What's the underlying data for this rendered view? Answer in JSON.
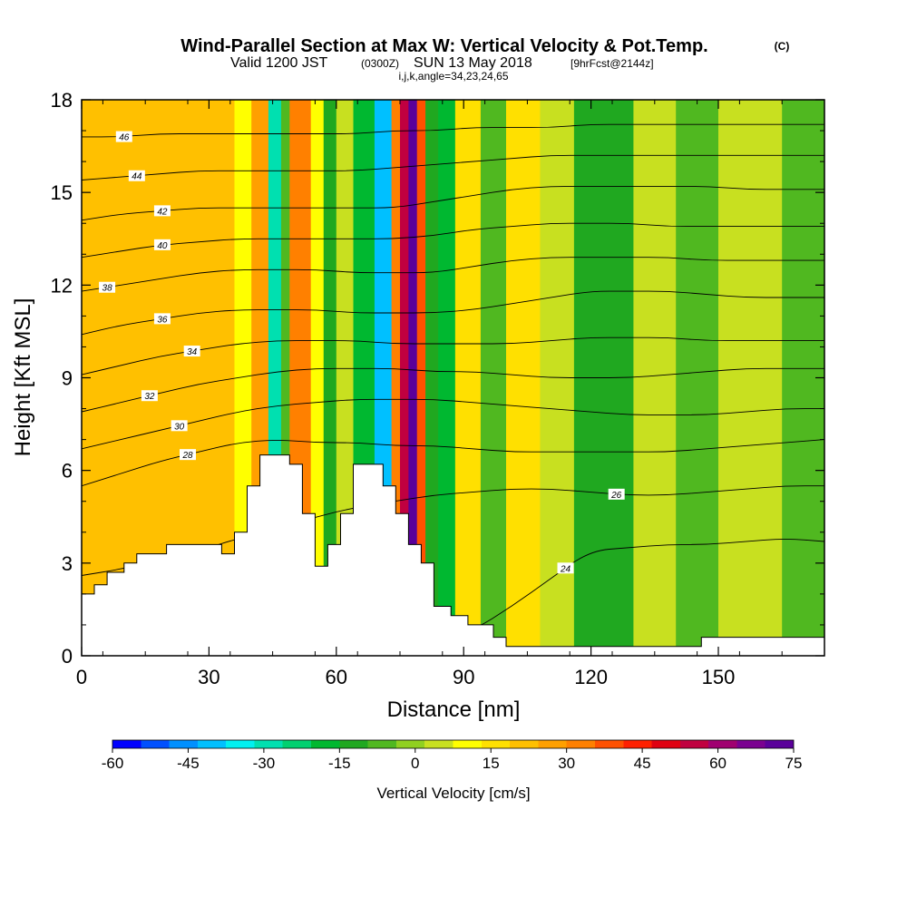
{
  "titles": {
    "main": "Wind-Parallel Section at Max W: Vertical Velocity & Pot.Temp.",
    "copyright": "(C)",
    "valid_prefix": "Valid 1200 JST",
    "valid_utc": "(0300Z)",
    "valid_date": "SUN 13 May 2018",
    "forecast": "[9hrFcst@2144z]",
    "indices": "i,j,k,angle=34,23,24,65"
  },
  "chart_data": {
    "type": "heatmap",
    "xlabel": "Distance [nm]",
    "ylabel": "Height [Kft MSL]",
    "xlim": [
      0,
      175
    ],
    "ylim": [
      0,
      18
    ],
    "xticks": [
      0,
      30,
      60,
      90,
      120,
      150
    ],
    "yticks": [
      0,
      3,
      6,
      9,
      12,
      15,
      18
    ],
    "colorbar": {
      "label": "Vertical Velocity [cm/s]",
      "ticks": [
        -60,
        -45,
        -30,
        -15,
        0,
        15,
        30,
        45,
        60,
        75
      ],
      "range": [
        -60,
        75
      ],
      "colors": [
        "#0000ff",
        "#0050ff",
        "#0090ff",
        "#00c0ff",
        "#00f0f0",
        "#00e0b0",
        "#00d070",
        "#00b830",
        "#20a820",
        "#50b820",
        "#90d020",
        "#c8e020",
        "#ffff00",
        "#ffe000",
        "#ffc000",
        "#ffa000",
        "#ff8000",
        "#ff5000",
        "#ff2000",
        "#e00010",
        "#c00040",
        "#a00070",
        "#7a0090",
        "#5a009a"
      ]
    },
    "terrain": [
      [
        0,
        2.0
      ],
      [
        3,
        2.0
      ],
      [
        3,
        2.3
      ],
      [
        6,
        2.3
      ],
      [
        6,
        2.7
      ],
      [
        10,
        2.7
      ],
      [
        10,
        3.0
      ],
      [
        13,
        3.0
      ],
      [
        13,
        3.3
      ],
      [
        20,
        3.3
      ],
      [
        20,
        3.6
      ],
      [
        33,
        3.6
      ],
      [
        33,
        3.3
      ],
      [
        36,
        3.3
      ],
      [
        36,
        4.0
      ],
      [
        39,
        4.0
      ],
      [
        39,
        5.5
      ],
      [
        42,
        5.5
      ],
      [
        42,
        6.5
      ],
      [
        49,
        6.5
      ],
      [
        49,
        6.2
      ],
      [
        52,
        6.2
      ],
      [
        52,
        4.6
      ],
      [
        55,
        4.6
      ],
      [
        55,
        2.9
      ],
      [
        58,
        2.9
      ],
      [
        58,
        3.6
      ],
      [
        61,
        3.6
      ],
      [
        61,
        4.6
      ],
      [
        64,
        4.6
      ],
      [
        64,
        6.2
      ],
      [
        71,
        6.2
      ],
      [
        71,
        5.5
      ],
      [
        74,
        5.5
      ],
      [
        74,
        4.6
      ],
      [
        77,
        4.6
      ],
      [
        77,
        3.6
      ],
      [
        80,
        3.6
      ],
      [
        80,
        3.0
      ],
      [
        83,
        3.0
      ],
      [
        83,
        1.6
      ],
      [
        87,
        1.6
      ],
      [
        87,
        1.3
      ],
      [
        91,
        1.3
      ],
      [
        91,
        1.0
      ],
      [
        97,
        1.0
      ],
      [
        97,
        0.6
      ],
      [
        100,
        0.6
      ],
      [
        100,
        0.3
      ],
      [
        146,
        0.3
      ],
      [
        146,
        0.6
      ],
      [
        175,
        0.6
      ]
    ],
    "contours": [
      {
        "level": 24,
        "label_x": 114,
        "heights": [
          0.6,
          0.6,
          0.6,
          0.6,
          0.6,
          0.6,
          0.6,
          0.6,
          0.6,
          0.6,
          0.8,
          1.6,
          2.5,
          3.4,
          3.5,
          3.6,
          3.6,
          3.7,
          3.8,
          3.7
        ]
      },
      {
        "level": 26,
        "label_x": 126,
        "heights": [
          2.6,
          2.8,
          3.1,
          3.4,
          3.8,
          4.1,
          4.5,
          4.8,
          5.0,
          5.2,
          5.3,
          5.4,
          5.4,
          5.3,
          5.2,
          5.2,
          5.3,
          5.4,
          5.5,
          5.5
        ]
      },
      {
        "level": 28,
        "label_x": 25,
        "heights": [
          5.5,
          5.9,
          6.3,
          6.6,
          6.9,
          7.0,
          6.9,
          6.9,
          6.8,
          6.8,
          6.7,
          6.6,
          6.6,
          6.6,
          6.6,
          6.6,
          6.7,
          6.8,
          6.9,
          7.0
        ]
      },
      {
        "level": 30,
        "label_x": 23,
        "heights": [
          6.7,
          7.0,
          7.3,
          7.6,
          7.9,
          8.1,
          8.2,
          8.3,
          8.3,
          8.3,
          8.2,
          8.1,
          8.0,
          7.9,
          7.8,
          7.8,
          7.8,
          7.9,
          8.0,
          8.0
        ]
      },
      {
        "level": 32,
        "label_x": 16,
        "heights": [
          7.9,
          8.2,
          8.5,
          8.8,
          9.0,
          9.2,
          9.3,
          9.3,
          9.3,
          9.2,
          9.2,
          9.1,
          9.0,
          9.0,
          9.0,
          9.1,
          9.2,
          9.3,
          9.3,
          9.3
        ]
      },
      {
        "level": 34,
        "label_x": 26,
        "heights": [
          9.1,
          9.4,
          9.7,
          9.9,
          10.1,
          10.2,
          10.2,
          10.2,
          10.1,
          10.1,
          10.1,
          10.1,
          10.2,
          10.3,
          10.3,
          10.3,
          10.2,
          10.2,
          10.2,
          10.2
        ]
      },
      {
        "level": 36,
        "label_x": 19,
        "heights": [
          10.4,
          10.7,
          10.9,
          11.1,
          11.2,
          11.2,
          11.2,
          11.1,
          11.1,
          11.1,
          11.2,
          11.4,
          11.6,
          11.8,
          11.8,
          11.8,
          11.7,
          11.6,
          11.6,
          11.6
        ]
      },
      {
        "level": 38,
        "label_x": 6,
        "heights": [
          11.8,
          12.0,
          12.2,
          12.4,
          12.5,
          12.5,
          12.5,
          12.4,
          12.4,
          12.4,
          12.6,
          12.8,
          12.9,
          12.9,
          12.9,
          12.9,
          12.8,
          12.8,
          12.8,
          12.8
        ]
      },
      {
        "level": 40,
        "label_x": 19,
        "heights": [
          12.9,
          13.1,
          13.3,
          13.4,
          13.5,
          13.5,
          13.5,
          13.5,
          13.5,
          13.6,
          13.8,
          13.9,
          14.0,
          14.0,
          14.0,
          13.9,
          13.9,
          13.9,
          13.9,
          13.9
        ]
      },
      {
        "level": 42,
        "label_x": 19,
        "heights": [
          14.1,
          14.3,
          14.4,
          14.5,
          14.5,
          14.5,
          14.5,
          14.5,
          14.5,
          14.7,
          14.9,
          15.1,
          15.2,
          15.2,
          15.2,
          15.2,
          15.2,
          15.1,
          15.1,
          15.1
        ]
      },
      {
        "level": 44,
        "label_x": 13,
        "heights": [
          15.4,
          15.5,
          15.6,
          15.7,
          15.7,
          15.7,
          15.7,
          15.7,
          15.8,
          15.9,
          16.0,
          16.1,
          16.2,
          16.2,
          16.2,
          16.2,
          16.2,
          16.2,
          16.2,
          16.2
        ]
      },
      {
        "level": 46,
        "label_x": 10,
        "heights": [
          16.8,
          16.8,
          16.9,
          16.9,
          16.9,
          16.9,
          16.9,
          16.9,
          17.0,
          17.0,
          17.1,
          17.1,
          17.1,
          17.2,
          17.2,
          17.2,
          17.2,
          17.2,
          17.2,
          17.2
        ]
      }
    ],
    "velocity_field": [
      {
        "x0": 0,
        "x1": 36,
        "value": 22
      },
      {
        "x0": 36,
        "x1": 40,
        "value": 12
      },
      {
        "x0": 40,
        "x1": 44,
        "value": 28
      },
      {
        "x0": 44,
        "x1": 47,
        "value": -30
      },
      {
        "x0": 47,
        "x1": 49,
        "value": -8
      },
      {
        "x0": 49,
        "x1": 54,
        "value": 30
      },
      {
        "x0": 54,
        "x1": 57,
        "value": 10
      },
      {
        "x0": 57,
        "x1": 60,
        "value": -12
      },
      {
        "x0": 60,
        "x1": 64,
        "value": 5
      },
      {
        "x0": 64,
        "x1": 69,
        "value": -18
      },
      {
        "x0": 69,
        "x1": 73,
        "value": -38
      },
      {
        "x0": 73,
        "x1": 75,
        "value": 30
      },
      {
        "x0": 75,
        "x1": 77,
        "value": 55
      },
      {
        "x0": 77,
        "x1": 79,
        "value": 75
      },
      {
        "x0": 79,
        "x1": 81,
        "value": 40
      },
      {
        "x0": 81,
        "x1": 84,
        "value": -10
      },
      {
        "x0": 84,
        "x1": 88,
        "value": -20
      },
      {
        "x0": 88,
        "x1": 94,
        "value": 15
      },
      {
        "x0": 94,
        "x1": 100,
        "value": -6
      },
      {
        "x0": 100,
        "x1": 108,
        "value": 16
      },
      {
        "x0": 108,
        "x1": 116,
        "value": 6
      },
      {
        "x0": 116,
        "x1": 130,
        "value": -12
      },
      {
        "x0": 130,
        "x1": 140,
        "value": 4
      },
      {
        "x0": 140,
        "x1": 150,
        "value": -8
      },
      {
        "x0": 150,
        "x1": 165,
        "value": 2
      },
      {
        "x0": 165,
        "x1": 175,
        "value": -4
      }
    ]
  }
}
